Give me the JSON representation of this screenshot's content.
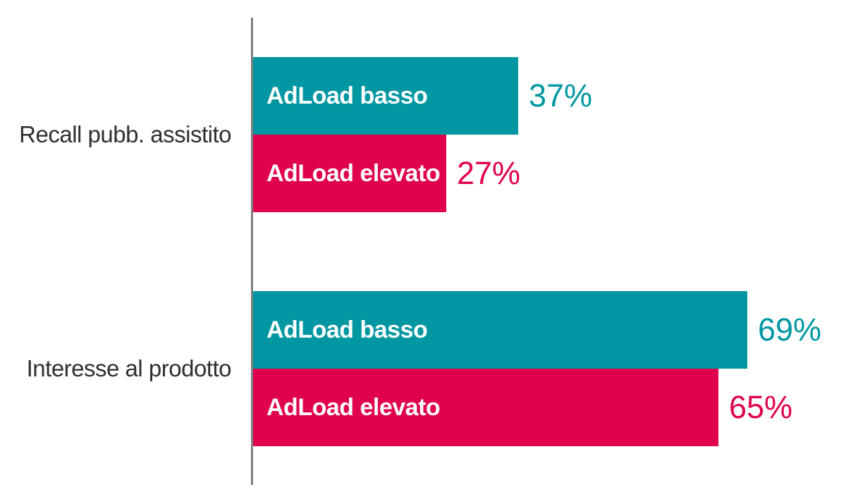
{
  "chart_data": {
    "type": "bar",
    "orientation": "horizontal",
    "title": "",
    "xlabel": "",
    "ylabel": "",
    "unit": "%",
    "xlim": [
      0,
      100
    ],
    "grid": false,
    "legend_position": "labels-inside-bars",
    "axis_line_color": "#7f7f7f",
    "categories": [
      "Recall pubb. assistito",
      "Interesse al prodotto"
    ],
    "series": [
      {
        "name": "AdLoad basso",
        "color": "#0097A2",
        "values": [
          37,
          69
        ]
      },
      {
        "name": "AdLoad elevato",
        "color": "#E0024D",
        "values": [
          27,
          65
        ]
      }
    ],
    "groups": [
      {
        "category": "Recall pubb. assistito",
        "bars": [
          {
            "label": "AdLoad basso",
            "value": 37,
            "value_text": "37%",
            "color": "#0097A2"
          },
          {
            "label": "AdLoad elevato",
            "value": 27,
            "value_text": "27%",
            "color": "#E0024D"
          }
        ]
      },
      {
        "category": "Interesse al prodotto",
        "bars": [
          {
            "label": "AdLoad basso",
            "value": 69,
            "value_text": "69%",
            "color": "#0097A2"
          },
          {
            "label": "AdLoad elevato",
            "value": 65,
            "value_text": "65%",
            "color": "#E0024D"
          }
        ]
      }
    ]
  },
  "colors": {
    "background": "#ffffff",
    "bar_label_text": "#ffffff",
    "category_text": "#2f2f2f",
    "axis_line": "#7f7f7f",
    "teal": "#0097A2",
    "pink": "#E0024D"
  }
}
